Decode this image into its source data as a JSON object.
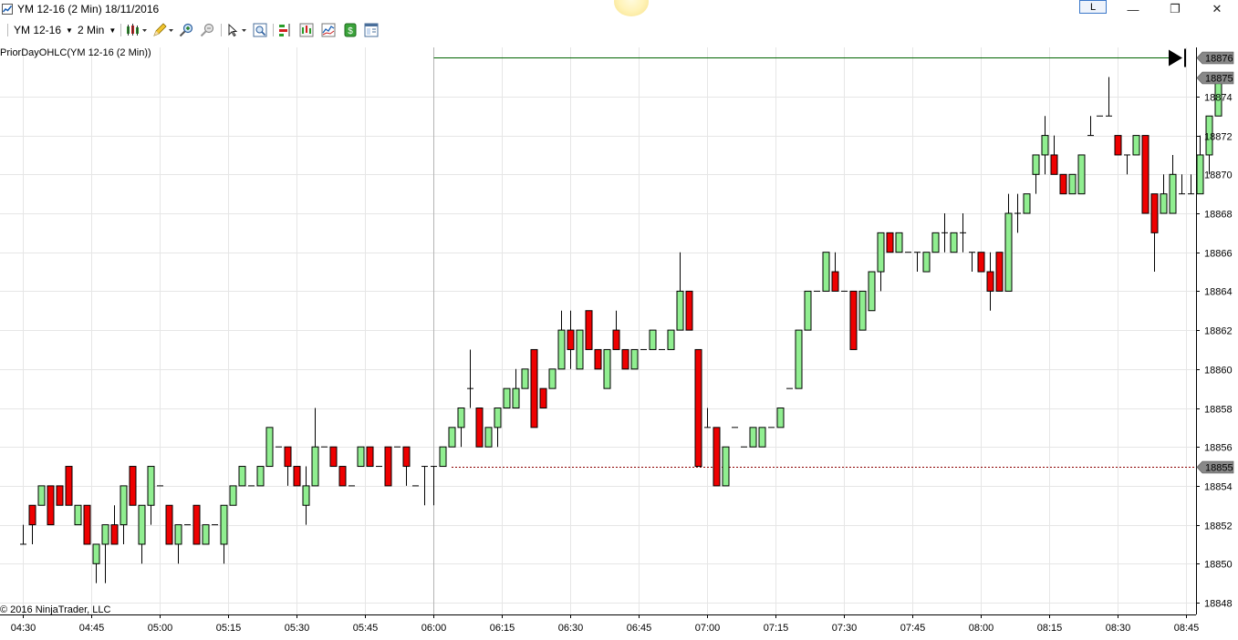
{
  "window": {
    "title": "YM 12-16 (2 Min)  18/11/2016",
    "link_button_label": "L",
    "minimize_glyph": "—",
    "restore_glyph": "❐",
    "close_glyph": "✕"
  },
  "toolbar": {
    "instrument": "YM 12-16",
    "interval": "2 Min",
    "icons": [
      "bar-type-icon",
      "drawing-pencil-icon",
      "zoom-in-icon",
      "zoom-out-icon",
      "pointer-icon",
      "data-box-icon",
      "strategies-icon",
      "chart-trader-icon",
      "indicators-icon",
      "strategy-icon",
      "properties-icon"
    ]
  },
  "indicator_label": "PriorDayOHLC(YM 12-16 (2 Min))",
  "copyright": "© 2016 NinjaTrader, LLC",
  "colors": {
    "up": "#90ee90",
    "down": "#ee0000",
    "wick": "#000000",
    "prior_close": "#8b0000",
    "last_price_line": "#006400"
  },
  "chart_data": {
    "type": "candlestick",
    "x_unit": "minutes",
    "price_ticks": [
      18848,
      18850,
      18852,
      18854,
      18856,
      18858,
      18860,
      18862,
      18864,
      18866,
      18868,
      18870,
      18872,
      18874
    ],
    "ylim": [
      18847.5,
      18877.5
    ],
    "xlim": [
      "04:29",
      "08:55"
    ],
    "time_ticks": [
      "04:30",
      "04:45",
      "05:00",
      "05:15",
      "05:30",
      "05:45",
      "06:00",
      "06:15",
      "06:30",
      "06:45",
      "07:00",
      "07:15",
      "07:30",
      "07:45",
      "08:00",
      "08:15",
      "08:30",
      "08:45"
    ],
    "prior_close": 18855,
    "prior_close_label": "18855",
    "last_price_line": 18876,
    "last_price_line_label": "18876",
    "last_price_label": "18875",
    "last_price": 18875,
    "bars": [
      {
        "t": "04:30",
        "o": 18851,
        "h": 18852,
        "l": 18851,
        "c": 18851
      },
      {
        "t": "04:32",
        "o": 18853,
        "h": 18853,
        "l": 18851,
        "c": 18852
      },
      {
        "t": "04:34",
        "o": 18853,
        "h": 18854,
        "l": 18853,
        "c": 18854
      },
      {
        "t": "04:36",
        "o": 18854,
        "h": 18854,
        "l": 18852,
        "c": 18852
      },
      {
        "t": "04:38",
        "o": 18854,
        "h": 18854,
        "l": 18853,
        "c": 18853
      },
      {
        "t": "04:40",
        "o": 18855,
        "h": 18855,
        "l": 18853,
        "c": 18853
      },
      {
        "t": "04:42",
        "o": 18852,
        "h": 18853,
        "l": 18852,
        "c": 18853
      },
      {
        "t": "04:44",
        "o": 18853,
        "h": 18853,
        "l": 18851,
        "c": 18851
      },
      {
        "t": "04:46",
        "o": 18850,
        "h": 18851,
        "l": 18849,
        "c": 18851
      },
      {
        "t": "04:48",
        "o": 18851,
        "h": 18852,
        "l": 18849,
        "c": 18852
      },
      {
        "t": "04:50",
        "o": 18852,
        "h": 18853,
        "l": 18851,
        "c": 18851
      },
      {
        "t": "04:52",
        "o": 18852,
        "h": 18854,
        "l": 18851,
        "c": 18854
      },
      {
        "t": "04:54",
        "o": 18855,
        "h": 18855,
        "l": 18853,
        "c": 18853
      },
      {
        "t": "04:56",
        "o": 18851,
        "h": 18853,
        "l": 18850,
        "c": 18853
      },
      {
        "t": "04:58",
        "o": 18853,
        "h": 18855,
        "l": 18852,
        "c": 18855
      },
      {
        "t": "05:00",
        "o": 18854,
        "h": 18854,
        "l": 18854,
        "c": 18854
      },
      {
        "t": "05:02",
        "o": 18853,
        "h": 18853,
        "l": 18851,
        "c": 18851
      },
      {
        "t": "05:04",
        "o": 18851,
        "h": 18852,
        "l": 18850,
        "c": 18852
      },
      {
        "t": "05:06",
        "o": 18852,
        "h": 18852,
        "l": 18852,
        "c": 18852
      },
      {
        "t": "05:08",
        "o": 18853,
        "h": 18853,
        "l": 18851,
        "c": 18851
      },
      {
        "t": "05:10",
        "o": 18851,
        "h": 18852,
        "l": 18851,
        "c": 18852
      },
      {
        "t": "05:12",
        "o": 18852,
        "h": 18852,
        "l": 18852,
        "c": 18852
      },
      {
        "t": "05:14",
        "o": 18851,
        "h": 18853,
        "l": 18850,
        "c": 18853
      },
      {
        "t": "05:16",
        "o": 18853,
        "h": 18854,
        "l": 18853,
        "c": 18854
      },
      {
        "t": "05:18",
        "o": 18854,
        "h": 18855,
        "l": 18854,
        "c": 18855
      },
      {
        "t": "05:20",
        "o": 18854,
        "h": 18854,
        "l": 18854,
        "c": 18854
      },
      {
        "t": "05:22",
        "o": 18854,
        "h": 18855,
        "l": 18854,
        "c": 18855
      },
      {
        "t": "05:24",
        "o": 18855,
        "h": 18857,
        "l": 18855,
        "c": 18857
      },
      {
        "t": "05:26",
        "o": 18856,
        "h": 18856,
        "l": 18856,
        "c": 18856
      },
      {
        "t": "05:28",
        "o": 18856,
        "h": 18856,
        "l": 18854,
        "c": 18855
      },
      {
        "t": "05:30",
        "o": 18855,
        "h": 18855,
        "l": 18854,
        "c": 18854
      },
      {
        "t": "05:32",
        "o": 18853,
        "h": 18855,
        "l": 18852,
        "c": 18854
      },
      {
        "t": "05:34",
        "o": 18854,
        "h": 18858,
        "l": 18854,
        "c": 18856
      },
      {
        "t": "05:36",
        "o": 18856,
        "h": 18856,
        "l": 18856,
        "c": 18856
      },
      {
        "t": "05:38",
        "o": 18856,
        "h": 18856,
        "l": 18855,
        "c": 18855
      },
      {
        "t": "05:40",
        "o": 18855,
        "h": 18855,
        "l": 18854,
        "c": 18854
      },
      {
        "t": "05:42",
        "o": 18854,
        "h": 18854,
        "l": 18854,
        "c": 18854
      },
      {
        "t": "05:44",
        "o": 18855,
        "h": 18856,
        "l": 18855,
        "c": 18856
      },
      {
        "t": "05:46",
        "o": 18856,
        "h": 18856,
        "l": 18855,
        "c": 18855
      },
      {
        "t": "05:48",
        "o": 18855,
        "h": 18855,
        "l": 18855,
        "c": 18855
      },
      {
        "t": "05:50",
        "o": 18856,
        "h": 18856,
        "l": 18854,
        "c": 18854
      },
      {
        "t": "05:52",
        "o": 18856,
        "h": 18856,
        "l": 18856,
        "c": 18856
      },
      {
        "t": "05:54",
        "o": 18856,
        "h": 18856,
        "l": 18854,
        "c": 18855
      },
      {
        "t": "05:56",
        "o": 18854,
        "h": 18854,
        "l": 18854,
        "c": 18854
      },
      {
        "t": "05:58",
        "o": 18855,
        "h": 18855,
        "l": 18853,
        "c": 18855
      },
      {
        "t": "06:00",
        "o": 18855,
        "h": 18855,
        "l": 18853,
        "c": 18855
      },
      {
        "t": "06:02",
        "o": 18855,
        "h": 18856,
        "l": 18855,
        "c": 18856
      },
      {
        "t": "06:04",
        "o": 18856,
        "h": 18857,
        "l": 18856,
        "c": 18857
      },
      {
        "t": "06:06",
        "o": 18857,
        "h": 18858,
        "l": 18856,
        "c": 18858
      },
      {
        "t": "06:08",
        "o": 18859,
        "h": 18861,
        "l": 18858,
        "c": 18859
      },
      {
        "t": "06:10",
        "o": 18858,
        "h": 18858,
        "l": 18856,
        "c": 18856
      },
      {
        "t": "06:12",
        "o": 18856,
        "h": 18857,
        "l": 18856,
        "c": 18857
      },
      {
        "t": "06:14",
        "o": 18857,
        "h": 18858,
        "l": 18856,
        "c": 18858
      },
      {
        "t": "06:16",
        "o": 18858,
        "h": 18859,
        "l": 18858,
        "c": 18859
      },
      {
        "t": "06:18",
        "o": 18858,
        "h": 18860,
        "l": 18858,
        "c": 18859
      },
      {
        "t": "06:20",
        "o": 18859,
        "h": 18860,
        "l": 18859,
        "c": 18860
      },
      {
        "t": "06:22",
        "o": 18861,
        "h": 18861,
        "l": 18857,
        "c": 18857
      },
      {
        "t": "06:24",
        "o": 18859,
        "h": 18859,
        "l": 18858,
        "c": 18858
      },
      {
        "t": "06:26",
        "o": 18859,
        "h": 18860,
        "l": 18859,
        "c": 18860
      },
      {
        "t": "06:28",
        "o": 18860,
        "h": 18863,
        "l": 18860,
        "c": 18862
      },
      {
        "t": "06:30",
        "o": 18862,
        "h": 18863,
        "l": 18860,
        "c": 18861
      },
      {
        "t": "06:32",
        "o": 18860,
        "h": 18862,
        "l": 18860,
        "c": 18862
      },
      {
        "t": "06:34",
        "o": 18863,
        "h": 18863,
        "l": 18861,
        "c": 18861
      },
      {
        "t": "06:36",
        "o": 18861,
        "h": 18861,
        "l": 18860,
        "c": 18860
      },
      {
        "t": "06:38",
        "o": 18859,
        "h": 18861,
        "l": 18859,
        "c": 18861
      },
      {
        "t": "06:40",
        "o": 18862,
        "h": 18863,
        "l": 18861,
        "c": 18861
      },
      {
        "t": "06:42",
        "o": 18861,
        "h": 18861,
        "l": 18860,
        "c": 18860
      },
      {
        "t": "06:44",
        "o": 18860,
        "h": 18861,
        "l": 18860,
        "c": 18861
      },
      {
        "t": "06:46",
        "o": 18861,
        "h": 18861,
        "l": 18861,
        "c": 18861
      },
      {
        "t": "06:48",
        "o": 18861,
        "h": 18862,
        "l": 18861,
        "c": 18862
      },
      {
        "t": "06:50",
        "o": 18861,
        "h": 18861,
        "l": 18861,
        "c": 18861
      },
      {
        "t": "06:52",
        "o": 18861,
        "h": 18862,
        "l": 18861,
        "c": 18862
      },
      {
        "t": "06:54",
        "o": 18862,
        "h": 18866,
        "l": 18862,
        "c": 18864
      },
      {
        "t": "06:56",
        "o": 18864,
        "h": 18864,
        "l": 18862,
        "c": 18862
      },
      {
        "t": "06:58",
        "o": 18861,
        "h": 18861,
        "l": 18855,
        "c": 18855
      },
      {
        "t": "07:00",
        "o": 18857,
        "h": 18858,
        "l": 18857,
        "c": 18857
      },
      {
        "t": "07:02",
        "o": 18857,
        "h": 18857,
        "l": 18854,
        "c": 18854
      },
      {
        "t": "07:04",
        "o": 18854,
        "h": 18856,
        "l": 18854,
        "c": 18856
      },
      {
        "t": "07:06",
        "o": 18857,
        "h": 18857,
        "l": 18857,
        "c": 18857
      },
      {
        "t": "07:08",
        "o": 18856,
        "h": 18856,
        "l": 18856,
        "c": 18856
      },
      {
        "t": "07:10",
        "o": 18856,
        "h": 18857,
        "l": 18856,
        "c": 18857
      },
      {
        "t": "07:12",
        "o": 18856,
        "h": 18857,
        "l": 18856,
        "c": 18857
      },
      {
        "t": "07:14",
        "o": 18857,
        "h": 18857,
        "l": 18857,
        "c": 18857
      },
      {
        "t": "07:16",
        "o": 18857,
        "h": 18858,
        "l": 18857,
        "c": 18858
      },
      {
        "t": "07:18",
        "o": 18859,
        "h": 18859,
        "l": 18859,
        "c": 18859
      },
      {
        "t": "07:20",
        "o": 18859,
        "h": 18862,
        "l": 18859,
        "c": 18862
      },
      {
        "t": "07:22",
        "o": 18862,
        "h": 18864,
        "l": 18862,
        "c": 18864
      },
      {
        "t": "07:24",
        "o": 18864,
        "h": 18864,
        "l": 18864,
        "c": 18864
      },
      {
        "t": "07:26",
        "o": 18864,
        "h": 18866,
        "l": 18864,
        "c": 18866
      },
      {
        "t": "07:28",
        "o": 18865,
        "h": 18866,
        "l": 18864,
        "c": 18864
      },
      {
        "t": "07:30",
        "o": 18864,
        "h": 18864,
        "l": 18864,
        "c": 18864
      },
      {
        "t": "07:32",
        "o": 18864,
        "h": 18864,
        "l": 18861,
        "c": 18861
      },
      {
        "t": "07:34",
        "o": 18862,
        "h": 18864,
        "l": 18862,
        "c": 18864
      },
      {
        "t": "07:36",
        "o": 18863,
        "h": 18865,
        "l": 18863,
        "c": 18865
      },
      {
        "t": "07:38",
        "o": 18865,
        "h": 18867,
        "l": 18864,
        "c": 18867
      },
      {
        "t": "07:40",
        "o": 18867,
        "h": 18867,
        "l": 18866,
        "c": 18866
      },
      {
        "t": "07:42",
        "o": 18866,
        "h": 18867,
        "l": 18866,
        "c": 18867
      },
      {
        "t": "07:44",
        "o": 18866,
        "h": 18866,
        "l": 18866,
        "c": 18866
      },
      {
        "t": "07:46",
        "o": 18866,
        "h": 18866,
        "l": 18865,
        "c": 18866
      },
      {
        "t": "07:48",
        "o": 18865,
        "h": 18866,
        "l": 18865,
        "c": 18866
      },
      {
        "t": "07:50",
        "o": 18866,
        "h": 18867,
        "l": 18866,
        "c": 18867
      },
      {
        "t": "07:52",
        "o": 18867,
        "h": 18868,
        "l": 18866,
        "c": 18867
      },
      {
        "t": "07:54",
        "o": 18866,
        "h": 18867,
        "l": 18866,
        "c": 18867
      },
      {
        "t": "07:56",
        "o": 18867,
        "h": 18868,
        "l": 18866,
        "c": 18867
      },
      {
        "t": "07:58",
        "o": 18866,
        "h": 18866,
        "l": 18865,
        "c": 18866
      },
      {
        "t": "08:00",
        "o": 18866,
        "h": 18866,
        "l": 18865,
        "c": 18865
      },
      {
        "t": "08:02",
        "o": 18865,
        "h": 18866,
        "l": 18863,
        "c": 18864
      },
      {
        "t": "08:04",
        "o": 18866,
        "h": 18866,
        "l": 18864,
        "c": 18864
      },
      {
        "t": "08:06",
        "o": 18864,
        "h": 18869,
        "l": 18864,
        "c": 18868
      },
      {
        "t": "08:08",
        "o": 18868,
        "h": 18869,
        "l": 18867,
        "c": 18868
      },
      {
        "t": "08:10",
        "o": 18868,
        "h": 18869,
        "l": 18868,
        "c": 18869
      },
      {
        "t": "08:12",
        "o": 18870,
        "h": 18871,
        "l": 18869,
        "c": 18871
      },
      {
        "t": "08:14",
        "o": 18871,
        "h": 18873,
        "l": 18870,
        "c": 18872
      },
      {
        "t": "08:16",
        "o": 18871,
        "h": 18872,
        "l": 18870,
        "c": 18870
      },
      {
        "t": "08:18",
        "o": 18870,
        "h": 18870,
        "l": 18869,
        "c": 18869
      },
      {
        "t": "08:20",
        "o": 18869,
        "h": 18870,
        "l": 18869,
        "c": 18870
      },
      {
        "t": "08:22",
        "o": 18869,
        "h": 18871,
        "l": 18869,
        "c": 18871
      },
      {
        "t": "08:24",
        "o": 18872,
        "h": 18873,
        "l": 18872,
        "c": 18872
      },
      {
        "t": "08:26",
        "o": 18873,
        "h": 18873,
        "l": 18873,
        "c": 18873
      },
      {
        "t": "08:28",
        "o": 18873,
        "h": 18875,
        "l": 18873,
        "c": 18873
      },
      {
        "t": "08:30",
        "o": 18872,
        "h": 18872,
        "l": 18871,
        "c": 18871
      },
      {
        "t": "08:32",
        "o": 18871,
        "h": 18871,
        "l": 18870,
        "c": 18871
      },
      {
        "t": "08:34",
        "o": 18871,
        "h": 18872,
        "l": 18871,
        "c": 18872
      },
      {
        "t": "08:36",
        "o": 18872,
        "h": 18872,
        "l": 18868,
        "c": 18868
      },
      {
        "t": "08:38",
        "o": 18869,
        "h": 18869,
        "l": 18865,
        "c": 18867
      },
      {
        "t": "08:40",
        "o": 18868,
        "h": 18870,
        "l": 18868,
        "c": 18869
      },
      {
        "t": "08:42",
        "o": 18868,
        "h": 18871,
        "l": 18868,
        "c": 18870
      },
      {
        "t": "08:44",
        "o": 18869,
        "h": 18870,
        "l": 18869,
        "c": 18869
      },
      {
        "t": "08:46",
        "o": 18869,
        "h": 18870,
        "l": 18869,
        "c": 18869
      },
      {
        "t": "08:48",
        "o": 18869,
        "h": 18872,
        "l": 18869,
        "c": 18871
      },
      {
        "t": "08:50",
        "o": 18871,
        "h": 18873,
        "l": 18870,
        "c": 18873
      },
      {
        "t": "08:52",
        "o": 18873,
        "h": 18875,
        "l": 18873,
        "c": 18875
      }
    ]
  }
}
